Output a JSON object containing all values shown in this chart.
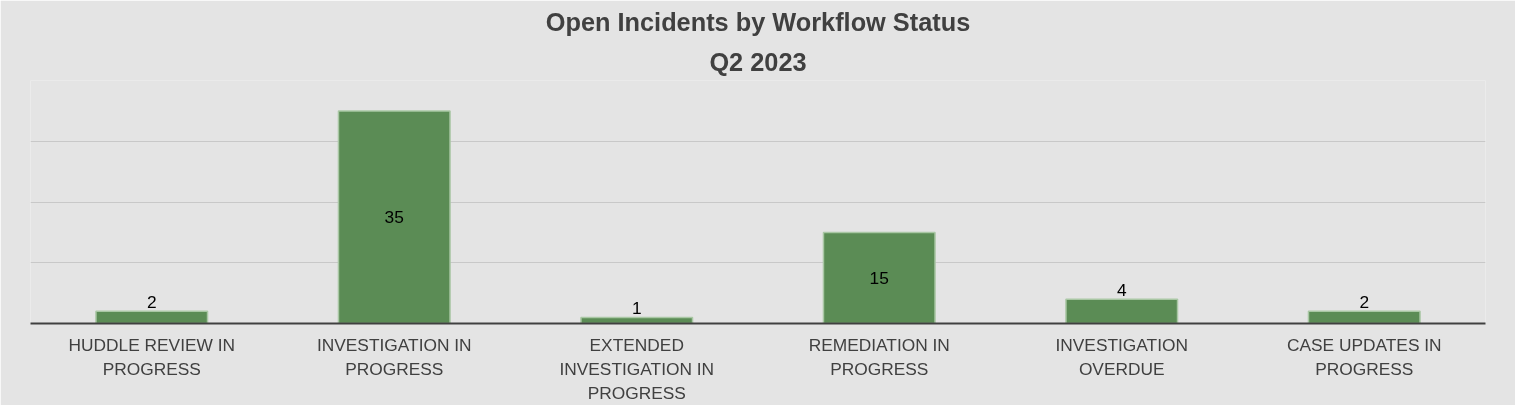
{
  "chart_data": {
    "type": "bar",
    "title": "Open Incidents by Workflow Status",
    "subtitle": "Q2 2023",
    "categories": [
      "HUDDLE REVIEW IN PROGRESS",
      "INVESTIGATION IN PROGRESS",
      "EXTENDED INVESTIGATION IN PROGRESS",
      "REMEDIATION IN PROGRESS",
      "INVESTIGATION OVERDUE",
      "CASE UPDATES IN PROGRESS"
    ],
    "values": [
      2,
      35,
      1,
      15,
      4,
      2
    ],
    "color": "#5b8c55",
    "ylim": [
      0,
      40
    ],
    "yticks": [
      {
        "value": 0,
        "label": null
      },
      {
        "value": 10,
        "label": null
      },
      {
        "value": 20,
        "label": null
      },
      {
        "value": 30,
        "label": null
      },
      {
        "value": 40,
        "label": null
      }
    ],
    "grid": "y",
    "tick_labels": "x",
    "data_labels": true
  }
}
